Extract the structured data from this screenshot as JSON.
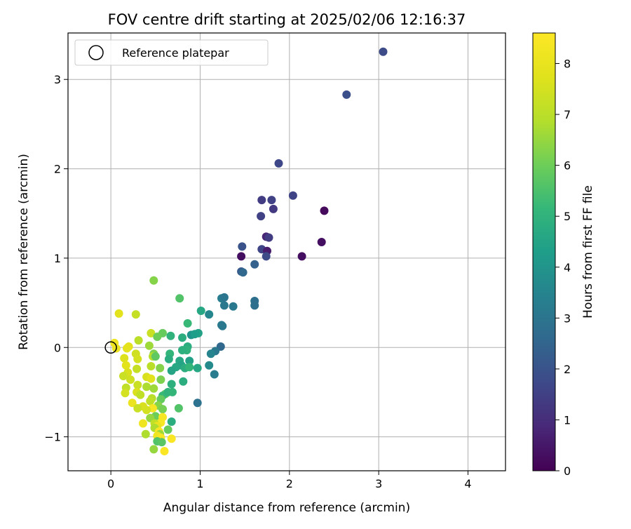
{
  "chart_data": {
    "type": "scatter",
    "title": "FOV centre drift starting at 2025/02/06 12:16:37",
    "xlabel": "Angular distance from reference (arcmin)",
    "ylabel": "Rotation from reference (arcmin)",
    "xlim": [
      -0.48,
      4.42
    ],
    "ylim": [
      -1.38,
      3.52
    ],
    "xticks": [
      0,
      1,
      2,
      3,
      4
    ],
    "yticks": [
      -1,
      0,
      1,
      2,
      3
    ],
    "xtick_labels": [
      "0",
      "1",
      "2",
      "3",
      "4"
    ],
    "ytick_labels": [
      "−1",
      "0",
      "1",
      "2",
      "3"
    ],
    "grid": true,
    "legend": {
      "position": "top-left",
      "entries": [
        {
          "label": "Reference platepar",
          "marker": "open-circle"
        }
      ]
    },
    "reference_point": {
      "x": 0,
      "y": 0
    },
    "colorbar": {
      "label": "Hours from first FF file",
      "colormap": "viridis",
      "min": 0,
      "max": 8.6,
      "ticks": [
        0,
        1,
        2,
        3,
        4,
        5,
        6,
        7,
        8
      ],
      "tick_labels": [
        "0",
        "1",
        "2",
        "3",
        "4",
        "5",
        "6",
        "7",
        "8"
      ]
    },
    "points": [
      [
        3.05,
        3.31,
        1.8
      ],
      [
        2.64,
        2.83,
        1.9
      ],
      [
        1.88,
        2.06,
        1.7
      ],
      [
        2.04,
        1.7,
        1.6
      ],
      [
        1.69,
        1.65,
        1.4
      ],
      [
        1.8,
        1.65,
        1.5
      ],
      [
        1.82,
        1.55,
        1.3
      ],
      [
        2.39,
        1.53,
        0.2
      ],
      [
        1.68,
        1.47,
        1.5
      ],
      [
        1.74,
        1.24,
        0.8
      ],
      [
        1.77,
        1.23,
        1.4
      ],
      [
        2.36,
        1.18,
        0.3
      ],
      [
        1.47,
        1.13,
        2.0
      ],
      [
        1.69,
        1.1,
        1.6
      ],
      [
        1.75,
        1.08,
        0.6
      ],
      [
        1.74,
        1.02,
        1.8
      ],
      [
        1.46,
        1.02,
        0.3
      ],
      [
        2.14,
        1.02,
        0.3
      ],
      [
        1.61,
        0.93,
        2.4
      ],
      [
        1.46,
        0.85,
        2.2
      ],
      [
        1.48,
        0.84,
        2.6
      ],
      [
        0.48,
        0.75,
        6.3
      ],
      [
        0.77,
        0.55,
        5.6
      ],
      [
        1.24,
        0.55,
        3.3
      ],
      [
        1.27,
        0.56,
        3.0
      ],
      [
        1.61,
        0.52,
        2.8
      ],
      [
        1.27,
        0.47,
        3.1
      ],
      [
        1.37,
        0.46,
        3.1
      ],
      [
        1.61,
        0.47,
        2.8
      ],
      [
        1.01,
        0.41,
        4.6
      ],
      [
        1.1,
        0.37,
        3.6
      ],
      [
        0.09,
        0.38,
        7.8
      ],
      [
        0.28,
        0.37,
        7.2
      ],
      [
        0.86,
        0.27,
        5.2
      ],
      [
        1.24,
        0.25,
        3.2
      ],
      [
        1.25,
        0.24,
        3.1
      ],
      [
        0.98,
        0.16,
        4.4
      ],
      [
        0.45,
        0.16,
        7.3
      ],
      [
        0.58,
        0.16,
        5.9
      ],
      [
        0.9,
        0.14,
        4.0
      ],
      [
        0.94,
        0.15,
        4.3
      ],
      [
        0.52,
        0.12,
        6.0
      ],
      [
        0.67,
        0.13,
        5.0
      ],
      [
        0.31,
        0.08,
        7.0
      ],
      [
        0.8,
        0.11,
        4.8
      ],
      [
        0.04,
        0.05,
        8.2
      ],
      [
        0.43,
        0.02,
        6.6
      ],
      [
        0.2,
        0.01,
        7.8
      ],
      [
        1.23,
        0.01,
        2.6
      ],
      [
        0.86,
        0.01,
        4.8
      ],
      [
        0.06,
        -0.01,
        8.1
      ],
      [
        0.18,
        -0.01,
        7.9
      ],
      [
        1.17,
        -0.04,
        3.1
      ],
      [
        0.85,
        -0.03,
        5.0
      ],
      [
        0.8,
        -0.03,
        4.9
      ],
      [
        0.28,
        -0.07,
        7.4
      ],
      [
        1.12,
        -0.07,
        3.5
      ],
      [
        0.48,
        -0.07,
        6.2
      ],
      [
        0.66,
        -0.07,
        5.1
      ],
      [
        0.47,
        -0.1,
        6.9
      ],
      [
        0.5,
        -0.1,
        5.8
      ],
      [
        0.15,
        -0.12,
        7.7
      ],
      [
        0.3,
        -0.13,
        7.5
      ],
      [
        0.88,
        -0.15,
        4.4
      ],
      [
        0.65,
        -0.13,
        4.8
      ],
      [
        0.77,
        -0.15,
        4.6
      ],
      [
        0.79,
        -0.2,
        4.5
      ],
      [
        1.1,
        -0.2,
        3.7
      ],
      [
        0.17,
        -0.2,
        7.8
      ],
      [
        0.45,
        -0.21,
        7.0
      ],
      [
        0.55,
        -0.23,
        6.3
      ],
      [
        0.73,
        -0.22,
        4.6
      ],
      [
        0.83,
        -0.23,
        4.8
      ],
      [
        0.88,
        -0.22,
        5.1
      ],
      [
        0.97,
        -0.23,
        4.6
      ],
      [
        0.68,
        -0.26,
        4.5
      ],
      [
        0.19,
        -0.28,
        7.6
      ],
      [
        0.29,
        -0.24,
        7.2
      ],
      [
        1.16,
        -0.3,
        3.2
      ],
      [
        0.14,
        -0.32,
        7.3
      ],
      [
        0.4,
        -0.33,
        7.6
      ],
      [
        0.45,
        -0.35,
        7.8
      ],
      [
        0.56,
        -0.36,
        6.2
      ],
      [
        0.22,
        -0.36,
        7.4
      ],
      [
        0.81,
        -0.38,
        4.8
      ],
      [
        0.68,
        -0.41,
        4.9
      ],
      [
        0.3,
        -0.42,
        7.3
      ],
      [
        0.17,
        -0.45,
        7.1
      ],
      [
        0.4,
        -0.44,
        6.8
      ],
      [
        0.48,
        -0.46,
        6.6
      ],
      [
        0.29,
        -0.5,
        7.6
      ],
      [
        0.16,
        -0.51,
        7.5
      ],
      [
        0.33,
        -0.53,
        7.1
      ],
      [
        0.61,
        -0.52,
        5.8
      ],
      [
        0.58,
        -0.54,
        5.2
      ],
      [
        0.64,
        -0.5,
        5.0
      ],
      [
        0.69,
        -0.5,
        5.1
      ],
      [
        0.46,
        -0.57,
        6.9
      ],
      [
        0.44,
        -0.6,
        7.1
      ],
      [
        0.56,
        -0.58,
        5.9
      ],
      [
        0.24,
        -0.62,
        8.1
      ],
      [
        0.97,
        -0.62,
        2.9
      ],
      [
        0.36,
        -0.66,
        7.6
      ],
      [
        0.53,
        -0.65,
        6.3
      ],
      [
        0.47,
        -0.68,
        8.4
      ],
      [
        0.76,
        -0.68,
        5.6
      ],
      [
        0.58,
        -0.69,
        6.1
      ],
      [
        0.3,
        -0.68,
        7.3
      ],
      [
        0.4,
        -0.7,
        7.5
      ],
      [
        0.5,
        -0.77,
        6.0
      ],
      [
        0.44,
        -0.79,
        6.5
      ],
      [
        0.58,
        -0.78,
        8.4
      ],
      [
        0.68,
        -0.83,
        4.8
      ],
      [
        0.56,
        -0.84,
        8.4
      ],
      [
        0.36,
        -0.85,
        8.2
      ],
      [
        0.49,
        -0.85,
        7.1
      ],
      [
        0.52,
        -0.88,
        8.0
      ],
      [
        0.49,
        -0.9,
        6.8
      ],
      [
        0.64,
        -0.92,
        5.9
      ],
      [
        0.54,
        -0.94,
        8.5
      ],
      [
        0.39,
        -0.97,
        6.8
      ],
      [
        0.55,
        -0.97,
        6.6
      ],
      [
        0.52,
        -0.99,
        8.2
      ],
      [
        0.56,
        -1.01,
        8.4
      ],
      [
        0.68,
        -1.02,
        8.5
      ],
      [
        0.52,
        -1.05,
        5.6
      ],
      [
        0.57,
        -1.06,
        5.7
      ],
      [
        0.48,
        -1.14,
        6.5
      ],
      [
        0.6,
        -1.16,
        8.5
      ]
    ]
  }
}
